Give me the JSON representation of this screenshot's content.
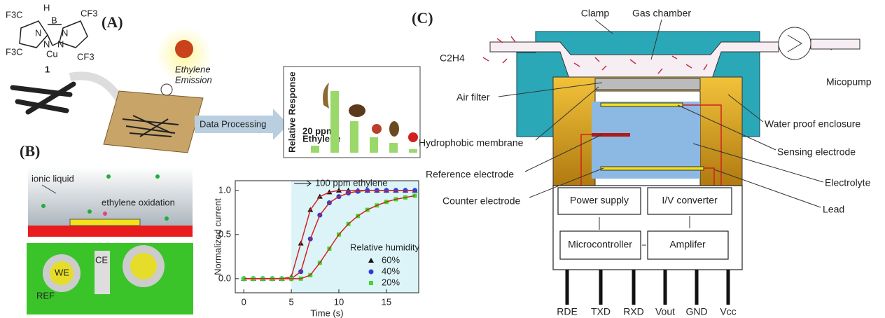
{
  "panel_a": {
    "label": "(A)",
    "molecule": [
      "F3C",
      "CF3",
      "F3C",
      "CF3",
      "N",
      "N",
      "N",
      "N",
      "B",
      "H",
      "Cu",
      "1"
    ],
    "ethylene_emission": [
      "Ethylene",
      "Emission"
    ],
    "data_processing": "Data Processing"
  },
  "panel_b": {
    "label": "(B)",
    "ionic_liquid": "ionic liquid",
    "ethylene_oxidation": "ethylene oxidation",
    "electrodes": [
      "WE",
      "CE",
      "REF"
    ]
  },
  "panel_c": {
    "label": "(C)",
    "clamp": "Clamp",
    "gas_chamber": "Gas chamber",
    "gas": "C2H4",
    "pump": "Micopump",
    "air_filter": "Air filter",
    "membrane": "Hydrophobic membrane",
    "reference": "Reference electrode",
    "counter": "Counter electrode",
    "enclosure": "Water proof enclosure",
    "sensing": "Sensing electrode",
    "electrolyte": "Electrolyte",
    "lead": "Lead",
    "blocks": [
      "Power supply",
      "I/V converter",
      "Microcontroller",
      "Amplifer"
    ],
    "pins": [
      "RDE",
      "TXD",
      "RXD",
      "Vout",
      "GND",
      "Vcc"
    ]
  },
  "chart_data": [
    {
      "type": "bar",
      "y_label": "Relative Response",
      "annotation": [
        "20 ppm",
        "Ethylene"
      ],
      "categories": [
        null,
        null,
        null,
        null,
        null,
        null
      ],
      "values": [
        0.1,
        0.88,
        0.45,
        0.22,
        0.14,
        0.05
      ],
      "color": "#9bd86a"
    },
    {
      "type": "scatter",
      "x_label": "Time (s)",
      "y_label": "Normalized current",
      "annotation": "100 ppm ethylene",
      "legend_title": "Relative humidity",
      "shade_from": 5,
      "fit_color": "#d42020",
      "x": [
        0,
        1,
        2,
        3,
        4,
        5,
        6,
        7,
        8,
        9,
        10,
        11,
        12,
        13,
        14,
        15,
        16,
        17,
        18
      ],
      "series": [
        {
          "name": "60%",
          "color": "#111111",
          "marker": "triangle",
          "values": [
            0,
            0,
            0,
            0,
            0,
            0.02,
            0.4,
            0.78,
            0.93,
            0.98,
            1,
            1,
            1,
            1,
            1,
            1,
            1,
            1,
            1
          ]
        },
        {
          "name": "40%",
          "color": "#2a3cdc",
          "marker": "circle",
          "values": [
            0,
            0,
            0,
            0,
            0,
            0,
            0.08,
            0.45,
            0.72,
            0.86,
            0.93,
            0.97,
            0.99,
            1,
            1,
            1,
            1,
            1,
            1
          ]
        },
        {
          "name": "20%",
          "color": "#3ddc2a",
          "marker": "square",
          "values": [
            0,
            0,
            0,
            0,
            0,
            0,
            0,
            0.04,
            0.18,
            0.34,
            0.5,
            0.62,
            0.71,
            0.78,
            0.83,
            0.87,
            0.9,
            0.92,
            0.94
          ]
        }
      ],
      "xlim": [
        -0.9,
        18.4
      ],
      "ylim": [
        -0.16,
        1.11
      ],
      "xticks": [
        0,
        5,
        10,
        15
      ],
      "yticks": [
        {
          "value": 0,
          "label": "0.0"
        },
        {
          "value": 0.5,
          "label": "0.5"
        },
        {
          "value": 1,
          "label": "1.0"
        }
      ]
    }
  ]
}
